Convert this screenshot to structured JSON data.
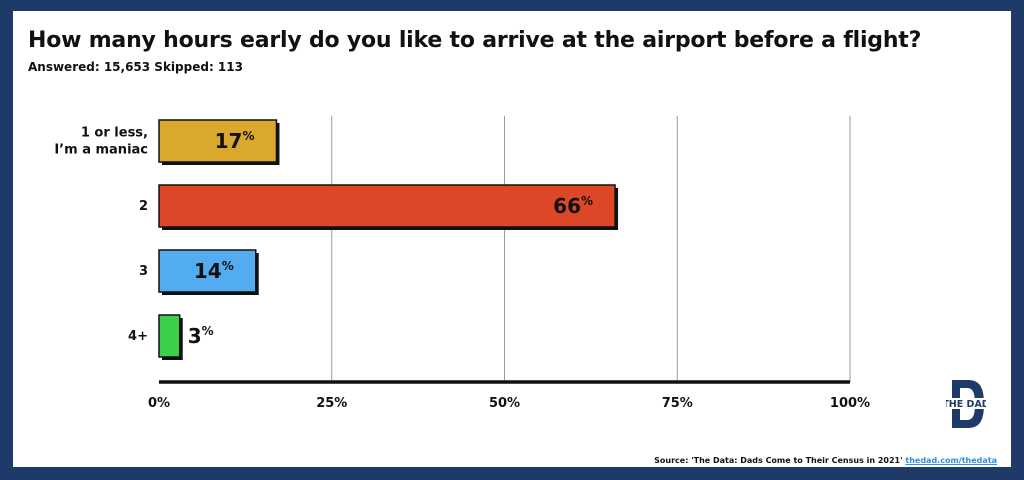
{
  "title": "How many hours early do you like to arrive at the airport before a flight?",
  "subtitle": "Answered: 15,653 Skipped: 113",
  "source_text": "Source: 'The Data: Dads Come to Their Census in 2021'",
  "source_link": "thedad.com/thedata",
  "logo_text": "THE DAD",
  "logo_letter": "D",
  "colors": {
    "background": "#1f3a68",
    "gridline": "#9a9a9a",
    "axis": "#111111"
  },
  "chart_data": {
    "type": "bar",
    "orientation": "horizontal",
    "title": "How many hours early do you like to arrive at the airport before a flight?",
    "categories": [
      [
        "1 or less,",
        "I’m a maniac"
      ],
      [
        "2"
      ],
      [
        "3"
      ],
      [
        "4+"
      ]
    ],
    "values": [
      17,
      66,
      14,
      3
    ],
    "value_labels": [
      "17",
      "66",
      "14",
      "3"
    ],
    "value_unit": "%",
    "colors": [
      "#d9a82c",
      "#db4727",
      "#53abf0",
      "#3ccf4a"
    ],
    "xlim": [
      0,
      100
    ],
    "xticks": [
      0,
      25,
      50,
      75,
      100
    ],
    "xtick_labels": [
      "0%",
      "25%",
      "50%",
      "75%",
      "100%"
    ],
    "gridlines": true
  }
}
